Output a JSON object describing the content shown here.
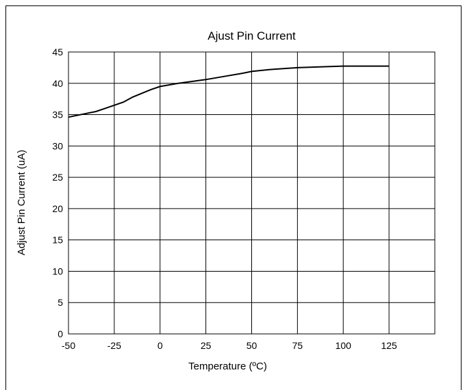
{
  "chart_data": {
    "type": "line",
    "title": "Ajust Pin Current",
    "xlabel": "Temperature (ºC)",
    "ylabel": "Adjust Pin Current (uA)",
    "xlim": [
      -50,
      150
    ],
    "ylim": [
      0,
      45
    ],
    "xticks": [
      "-50",
      "-25",
      "0",
      "25",
      "50",
      "75",
      "100",
      "125"
    ],
    "yticks": [
      "0",
      "5",
      "10",
      "15",
      "20",
      "25",
      "30",
      "35",
      "40",
      "45"
    ],
    "grid": true,
    "legend": "none",
    "line_color": "#000000",
    "series": [
      {
        "x": [
          -50,
          -40,
          -35,
          -30,
          -25,
          -20,
          -15,
          -10,
          -5,
          0,
          10,
          25,
          35,
          45,
          50,
          60,
          75,
          90,
          100,
          110,
          125
        ],
        "y": [
          34.6,
          35.2,
          35.5,
          36.0,
          36.5,
          37.0,
          37.8,
          38.4,
          39.0,
          39.5,
          40.0,
          40.6,
          41.1,
          41.6,
          41.9,
          42.2,
          42.5,
          42.65,
          42.75,
          42.75,
          42.75
        ]
      }
    ]
  }
}
